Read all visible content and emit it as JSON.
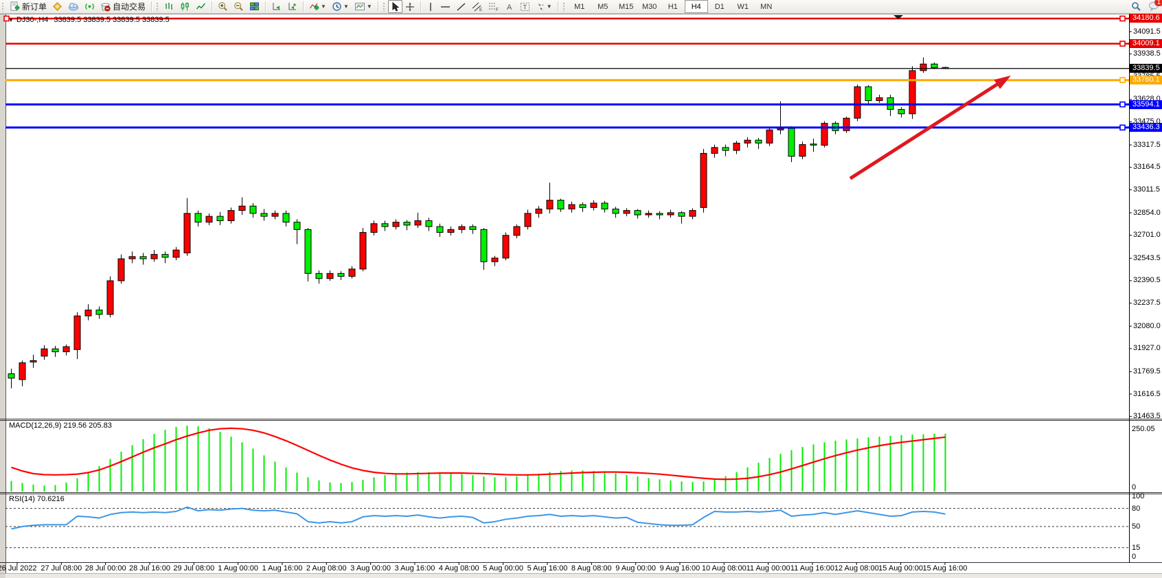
{
  "toolbar": {
    "new_order_label": "新订单",
    "auto_trading_label": "自动交易",
    "timeframes": [
      {
        "label": "M1",
        "active": false
      },
      {
        "label": "M5",
        "active": false
      },
      {
        "label": "M15",
        "active": false
      },
      {
        "label": "M30",
        "active": false
      },
      {
        "label": "H1",
        "active": false
      },
      {
        "label": "H4",
        "active": true
      },
      {
        "label": "D1",
        "active": false
      },
      {
        "label": "W1",
        "active": false
      },
      {
        "label": "MN",
        "active": false
      }
    ],
    "chat_badge": "1"
  },
  "window": {
    "title_symbol": "DJ30-,H4",
    "ohlc": "33839.5 33839.5 33839.5 33839.5"
  },
  "colors": {
    "up": "#FF0000",
    "down": "#00EE00",
    "wick": "#000000",
    "macd_hist": "#00EE00",
    "macd_signal": "#FF0000",
    "rsi_line": "#3C96E8",
    "line_red": "#E60000",
    "line_orange": "#FFA800",
    "line_blue": "#0000FF",
    "line_black": "#000000",
    "arrow": "#E01820"
  },
  "chart_data": {
    "type": "candlestick",
    "symbol": "DJ30-",
    "timeframe": "H4",
    "title": "DJ30-,H4  33839.5 33839.5 33839.5 33839.5",
    "current_price": "33839.5",
    "y_axis_ticks": [
      "34091.5",
      "33938.5",
      "33785.5",
      "33628.0",
      "33475.0",
      "33317.5",
      "33164.5",
      "33011.5",
      "32854.0",
      "32701.0",
      "32543.5",
      "32390.5",
      "32237.5",
      "32080.0",
      "31927.0",
      "31769.5",
      "31616.5",
      "31463.5"
    ],
    "price_badges": [
      {
        "value": "34180.6",
        "type": "red-line"
      },
      {
        "value": "34009.1",
        "type": "red-line"
      },
      {
        "value": "33839.5",
        "type": "current"
      },
      {
        "value": "33760.1",
        "type": "orange-line"
      },
      {
        "value": "33594.1",
        "type": "blue-line"
      },
      {
        "value": "33436.3",
        "type": "blue-line"
      }
    ],
    "hlines": [
      {
        "price": 34180.6,
        "type": "red-line",
        "width": 2.5,
        "right_handle": true,
        "left_handle": true
      },
      {
        "price": 34009.1,
        "type": "red-line",
        "width": 2.5,
        "right_handle": true,
        "left_handle": false
      },
      {
        "price": 33839.5,
        "type": "current",
        "width": 1.2,
        "right_handle": false,
        "left_handle": false
      },
      {
        "price": 33760.1,
        "type": "orange-line",
        "width": 3,
        "right_handle": true,
        "left_handle": false
      },
      {
        "price": 33594.1,
        "type": "blue-line",
        "width": 3,
        "right_handle": true,
        "left_handle": false
      },
      {
        "price": 33436.3,
        "type": "blue-line",
        "width": 3,
        "right_handle": true,
        "left_handle": false
      }
    ],
    "x_axis_labels": [
      "26 Jul 2022",
      "27 Jul 08:00",
      "28 Jul 00:00",
      "28 Jul 16:00",
      "29 Jul 08:00",
      "1 Aug 00:00",
      "1 Aug 16:00",
      "2 Aug 08:00",
      "3 Aug 00:00",
      "3 Aug 16:00",
      "4 Aug 08:00",
      "5 Aug 00:00",
      "5 Aug 16:00",
      "8 Aug 08:00",
      "9 Aug 00:00",
      "9 Aug 16:00",
      "10 Aug 08:00",
      "11 Aug 00:00",
      "11 Aug 16:00",
      "12 Aug 08:00",
      "15 Aug 00:00",
      "15 Aug 16:00"
    ],
    "candles": [
      [
        31755,
        31790,
        31655,
        31725
      ],
      [
        31715,
        31845,
        31670,
        31830
      ],
      [
        31835,
        31885,
        31795,
        31845
      ],
      [
        31875,
        31950,
        31850,
        31925
      ],
      [
        31925,
        31945,
        31870,
        31905
      ],
      [
        31905,
        31955,
        31880,
        31940
      ],
      [
        31920,
        32175,
        31855,
        32150
      ],
      [
        32150,
        32230,
        32120,
        32190
      ],
      [
        32190,
        32215,
        32130,
        32160
      ],
      [
        32160,
        32420,
        32140,
        32390
      ],
      [
        32390,
        32570,
        32370,
        32540
      ],
      [
        32540,
        32590,
        32510,
        32555
      ],
      [
        32555,
        32580,
        32500,
        32540
      ],
      [
        32540,
        32600,
        32520,
        32570
      ],
      [
        32570,
        32590,
        32510,
        32550
      ],
      [
        32550,
        32620,
        32530,
        32600
      ],
      [
        32580,
        32955,
        32560,
        32850
      ],
      [
        32850,
        32870,
        32760,
        32790
      ],
      [
        32790,
        32850,
        32770,
        32830
      ],
      [
        32830,
        32860,
        32770,
        32800
      ],
      [
        32800,
        32890,
        32780,
        32870
      ],
      [
        32870,
        32960,
        32840,
        32900
      ],
      [
        32900,
        32920,
        32820,
        32850
      ],
      [
        32850,
        32880,
        32800,
        32830
      ],
      [
        32830,
        32870,
        32810,
        32850
      ],
      [
        32850,
        32870,
        32760,
        32790
      ],
      [
        32790,
        32810,
        32640,
        32740
      ],
      [
        32740,
        32750,
        32385,
        32440
      ],
      [
        32440,
        32460,
        32370,
        32405
      ],
      [
        32405,
        32460,
        32390,
        32440
      ],
      [
        32440,
        32455,
        32395,
        32420
      ],
      [
        32420,
        32490,
        32405,
        32470
      ],
      [
        32470,
        32750,
        32455,
        32720
      ],
      [
        32720,
        32800,
        32700,
        32780
      ],
      [
        32780,
        32800,
        32730,
        32760
      ],
      [
        32760,
        32810,
        32740,
        32790
      ],
      [
        32790,
        32805,
        32735,
        32770
      ],
      [
        32770,
        32855,
        32750,
        32800
      ],
      [
        32800,
        32820,
        32730,
        32760
      ],
      [
        32760,
        32780,
        32690,
        32720
      ],
      [
        32720,
        32760,
        32700,
        32740
      ],
      [
        32740,
        32775,
        32715,
        32760
      ],
      [
        32760,
        32775,
        32710,
        32740
      ],
      [
        32740,
        32750,
        32465,
        32520
      ],
      [
        32520,
        32560,
        32490,
        32545
      ],
      [
        32545,
        32720,
        32530,
        32700
      ],
      [
        32700,
        32775,
        32680,
        32760
      ],
      [
        32760,
        32875,
        32740,
        32850
      ],
      [
        32850,
        32900,
        32820,
        32880
      ],
      [
        32880,
        33060,
        32850,
        32940
      ],
      [
        32940,
        32950,
        32860,
        32880
      ],
      [
        32880,
        32930,
        32855,
        32910
      ],
      [
        32910,
        32925,
        32860,
        32890
      ],
      [
        32890,
        32940,
        32870,
        32920
      ],
      [
        32920,
        32935,
        32855,
        32880
      ],
      [
        32880,
        32895,
        32820,
        32850
      ],
      [
        32850,
        32885,
        32830,
        32870
      ],
      [
        32870,
        32880,
        32815,
        32840
      ],
      [
        32840,
        32870,
        32820,
        32850
      ],
      [
        32850,
        32865,
        32810,
        32840
      ],
      [
        32840,
        32875,
        32820,
        32855
      ],
      [
        32855,
        32865,
        32780,
        32830
      ],
      [
        32830,
        32885,
        32810,
        32870
      ],
      [
        32890,
        33290,
        32855,
        33260
      ],
      [
        33260,
        33320,
        33230,
        33300
      ],
      [
        33300,
        33320,
        33240,
        33280
      ],
      [
        33280,
        33345,
        33255,
        33330
      ],
      [
        33330,
        33370,
        33300,
        33350
      ],
      [
        33350,
        33365,
        33290,
        33330
      ],
      [
        33330,
        33435,
        33310,
        33420
      ],
      [
        33420,
        33615,
        33390,
        33430
      ],
      [
        33430,
        33445,
        33200,
        33240
      ],
      [
        33240,
        33340,
        33220,
        33320
      ],
      [
        33320,
        33360,
        33270,
        33315
      ],
      [
        33315,
        33480,
        33300,
        33465
      ],
      [
        33465,
        33480,
        33390,
        33415
      ],
      [
        33415,
        33510,
        33400,
        33500
      ],
      [
        33500,
        33730,
        33480,
        33715
      ],
      [
        33715,
        33725,
        33600,
        33620
      ],
      [
        33620,
        33660,
        33605,
        33640
      ],
      [
        33640,
        33660,
        33515,
        33560
      ],
      [
        33560,
        33575,
        33505,
        33530
      ],
      [
        33530,
        33855,
        33495,
        33825
      ],
      [
        33825,
        33915,
        33810,
        33870
      ],
      [
        33870,
        33880,
        33835,
        33845
      ],
      [
        33843,
        33852,
        33836,
        33839.5
      ]
    ],
    "macd": {
      "label": "MACD(12,26,9) 219.56 205.83",
      "axis_max": "250.05",
      "axis_min": "0",
      "histogram": [
        38,
        30,
        24,
        20,
        22,
        32,
        48,
        70,
        95,
        122,
        150,
        175,
        198,
        218,
        234,
        245,
        250,
        248,
        240,
        226,
        208,
        186,
        162,
        136,
        112,
        90,
        70,
        52,
        40,
        32,
        30,
        34,
        42,
        52,
        60,
        66,
        70,
        72,
        72,
        70,
        67,
        64,
        60,
        55,
        52,
        52,
        55,
        60,
        66,
        72,
        76,
        78,
        78,
        76,
        72,
        67,
        61,
        55,
        49,
        44,
        40,
        36,
        34,
        36,
        44,
        56,
        72,
        90,
        108,
        126,
        142,
        156,
        168,
        178,
        186,
        192,
        197,
        201,
        205,
        208,
        211,
        214,
        216,
        217,
        218.8,
        219.56
      ],
      "signal": [
        90,
        76,
        66,
        62,
        61,
        62,
        64,
        70,
        80,
        95,
        112,
        130,
        148,
        165,
        180,
        196,
        210,
        222,
        232,
        238,
        240,
        238,
        232,
        222,
        208,
        192,
        174,
        155,
        136,
        118,
        102,
        88,
        78,
        71,
        67,
        65,
        65,
        66,
        67,
        68,
        68,
        68,
        67,
        66,
        64,
        62,
        61,
        61,
        62,
        64,
        66,
        68,
        70,
        71,
        72,
        72,
        71,
        69,
        67,
        64,
        60,
        56,
        52,
        48,
        45,
        44,
        45,
        48,
        54,
        62,
        72,
        84,
        97,
        110,
        123,
        135,
        146,
        156,
        165,
        173,
        180,
        186,
        191,
        196,
        201,
        205.83
      ]
    },
    "rsi": {
      "label": "RSI(14) 70.6216",
      "axis_labels": [
        "100",
        "80",
        "50",
        "15",
        "0"
      ],
      "dashed_levels": [
        80,
        50,
        15
      ],
      "values": [
        46,
        50,
        52,
        53,
        53,
        53,
        67,
        66,
        64,
        70,
        73,
        74,
        73,
        74,
        73,
        75,
        82,
        76,
        78,
        77,
        79,
        80,
        77,
        76,
        77,
        74,
        71,
        58,
        56,
        58,
        56,
        58,
        66,
        68,
        67,
        68,
        67,
        69,
        66,
        64,
        66,
        67,
        65,
        56,
        58,
        62,
        64,
        67,
        68,
        70,
        67,
        68,
        67,
        68,
        66,
        64,
        65,
        57,
        55,
        53,
        52,
        52,
        53,
        65,
        75,
        74,
        74,
        75,
        74,
        75,
        77,
        67,
        69,
        70,
        73,
        70,
        73,
        76,
        73,
        70,
        67,
        68,
        74,
        75,
        74,
        70.62
      ]
    },
    "annotation_arrow": {
      "from": [
        1238,
        260
      ],
      "to": [
        1472,
        110
      ]
    }
  }
}
